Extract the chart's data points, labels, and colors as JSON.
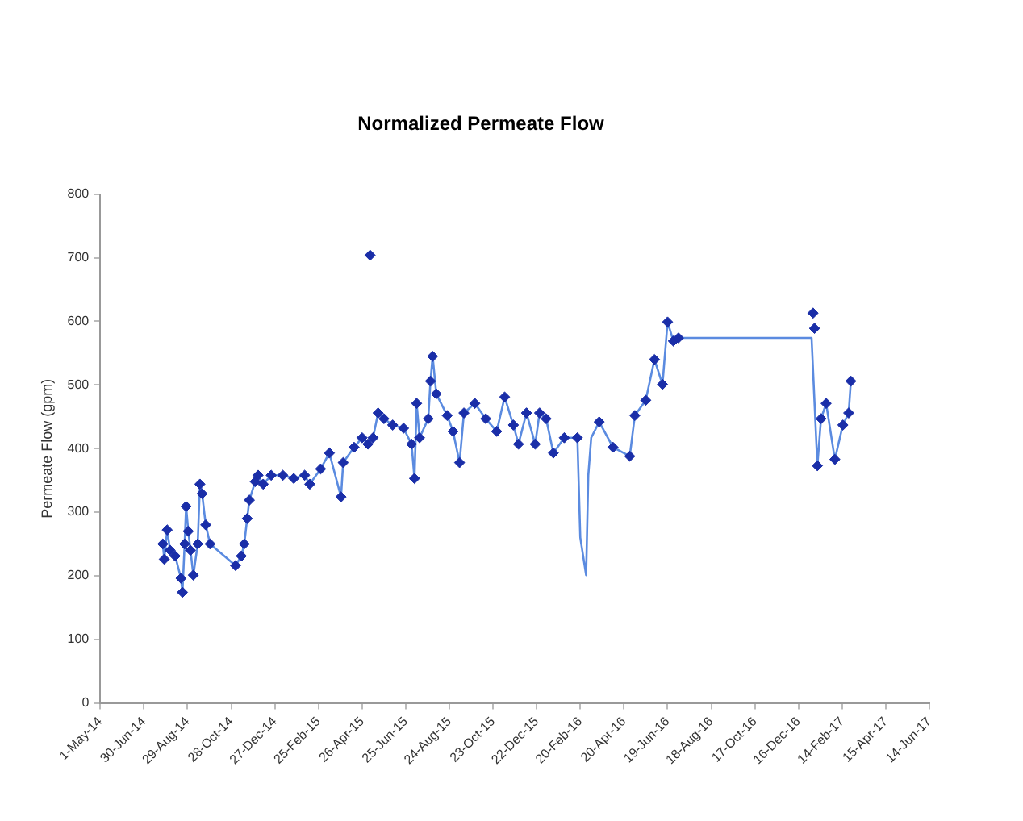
{
  "chart_data": {
    "type": "line",
    "title": "Normalized Permeate Flow",
    "ylabel": "Permeate Flow (gpm)",
    "xlim": [
      "2014-05-01",
      "2017-06-14"
    ],
    "xticks": [
      {
        "value": "2014-05-01",
        "label": "1-May-14"
      },
      {
        "value": "2014-06-30",
        "label": "30-Jun-14"
      },
      {
        "value": "2014-08-29",
        "label": "29-Aug-14"
      },
      {
        "value": "2014-10-28",
        "label": "28-Oct-14"
      },
      {
        "value": "2014-12-27",
        "label": "27-Dec-14"
      },
      {
        "value": "2015-02-25",
        "label": "25-Feb-15"
      },
      {
        "value": "2015-04-26",
        "label": "26-Apr-15"
      },
      {
        "value": "2015-06-25",
        "label": "25-Jun-15"
      },
      {
        "value": "2015-08-24",
        "label": "24-Aug-15"
      },
      {
        "value": "2015-10-23",
        "label": "23-Oct-15"
      },
      {
        "value": "2015-12-22",
        "label": "22-Dec-15"
      },
      {
        "value": "2016-02-20",
        "label": "20-Feb-16"
      },
      {
        "value": "2016-04-20",
        "label": "20-Apr-16"
      },
      {
        "value": "2016-06-19",
        "label": "19-Jun-16"
      },
      {
        "value": "2016-08-18",
        "label": "18-Aug-16"
      },
      {
        "value": "2016-10-17",
        "label": "17-Oct-16"
      },
      {
        "value": "2016-12-16",
        "label": "16-Dec-16"
      },
      {
        "value": "2017-02-14",
        "label": "14-Feb-17"
      },
      {
        "value": "2017-04-15",
        "label": "15-Apr-17"
      },
      {
        "value": "2017-06-14",
        "label": "14-Jun-17"
      }
    ],
    "ylim": [
      0,
      800
    ],
    "yticks": [
      0,
      100,
      200,
      300,
      400,
      500,
      600,
      700,
      800
    ],
    "grid": false,
    "legend": false,
    "series": [
      {
        "type": "line",
        "color": "#5b8be0",
        "marker": "none",
        "line_style": "solid",
        "x": [
          "2014-07-26",
          "2014-07-28",
          "2014-08-01",
          "2014-08-05",
          "2014-08-12",
          "2014-08-20",
          "2014-08-22",
          "2014-08-25",
          "2014-08-27",
          "2014-08-30",
          "2014-09-02",
          "2014-09-06",
          "2014-09-12",
          "2014-09-15",
          "2014-09-18",
          "2014-09-23",
          "2014-09-29",
          "2014-11-03",
          "2014-11-11",
          "2014-11-15",
          "2014-11-19",
          "2014-11-22",
          "2014-11-30",
          "2014-12-04",
          "2014-12-11",
          "2014-12-22",
          "2015-01-07",
          "2015-01-22",
          "2015-02-06",
          "2015-02-13",
          "2015-02-28",
          "2015-03-12",
          "2015-03-28",
          "2015-03-31",
          "2015-04-15",
          "2015-04-26",
          "2015-05-04",
          "2015-05-11",
          "2015-05-18",
          "2015-05-26",
          "2015-06-07",
          "2015-06-22",
          "2015-07-03",
          "2015-07-07",
          "2015-07-10",
          "2015-07-14",
          "2015-07-26",
          "2015-07-29",
          "2015-08-01",
          "2015-08-06",
          "2015-08-21",
          "2015-08-29",
          "2015-09-07",
          "2015-09-13",
          "2015-09-28",
          "2015-10-13",
          "2015-10-28",
          "2015-11-08",
          "2015-11-20",
          "2015-11-27",
          "2015-12-08",
          "2015-12-20",
          "2015-12-26",
          "2016-01-04",
          "2016-01-14",
          "2016-01-29",
          "2016-02-16",
          "2016-02-20",
          "2016-02-28",
          "2016-03-02",
          "2016-03-06",
          "2016-03-17",
          "2016-04-05",
          "2016-04-28",
          "2016-05-05",
          "2016-05-20",
          "2016-06-01",
          "2016-06-12",
          "2016-06-19",
          "2016-06-27",
          "2016-07-04",
          "2017-01-03",
          "2017-01-11",
          "2017-01-16",
          "2017-01-23",
          "2017-02-04",
          "2017-02-15",
          "2017-02-23",
          "2017-02-26"
        ],
        "values": [
          250,
          226,
          272,
          240,
          231,
          196,
          174,
          250,
          309,
          270,
          240,
          201,
          250,
          344,
          329,
          280,
          250,
          216,
          231,
          250,
          290,
          319,
          348,
          358,
          344,
          358,
          358,
          353,
          358,
          344,
          368,
          393,
          324,
          378,
          402,
          417,
          407,
          417,
          456,
          447,
          437,
          432,
          407,
          353,
          471,
          417,
          447,
          506,
          545,
          486,
          452,
          427,
          378,
          456,
          471,
          447,
          427,
          481,
          437,
          407,
          456,
          407,
          456,
          447,
          393,
          417,
          417,
          260,
          201,
          358,
          417,
          442,
          402,
          388,
          452,
          476,
          540,
          501,
          599,
          569,
          574,
          574,
          373,
          447,
          471,
          383,
          437,
          456,
          506
        ]
      },
      {
        "type": "scatter",
        "color": "#1a2ea8",
        "marker": "diamond",
        "x": [
          "2014-07-26",
          "2014-07-28",
          "2014-08-01",
          "2014-08-05",
          "2014-08-12",
          "2014-08-20",
          "2014-08-22",
          "2014-08-25",
          "2014-08-27",
          "2014-08-30",
          "2014-09-02",
          "2014-09-06",
          "2014-09-12",
          "2014-09-15",
          "2014-09-18",
          "2014-09-23",
          "2014-09-29",
          "2014-11-03",
          "2014-11-11",
          "2014-11-15",
          "2014-11-19",
          "2014-11-22",
          "2014-11-30",
          "2014-12-04",
          "2014-12-11",
          "2014-12-22",
          "2015-01-07",
          "2015-01-22",
          "2015-02-06",
          "2015-02-13",
          "2015-02-28",
          "2015-03-12",
          "2015-03-28",
          "2015-03-31",
          "2015-04-15",
          "2015-04-26",
          "2015-05-04",
          "2015-05-07",
          "2015-05-11",
          "2015-05-18",
          "2015-05-26",
          "2015-06-07",
          "2015-06-22",
          "2015-07-03",
          "2015-07-07",
          "2015-07-10",
          "2015-07-14",
          "2015-07-26",
          "2015-07-29",
          "2015-08-01",
          "2015-08-06",
          "2015-08-21",
          "2015-08-29",
          "2015-09-07",
          "2015-09-13",
          "2015-09-28",
          "2015-10-13",
          "2015-10-28",
          "2015-11-08",
          "2015-11-20",
          "2015-11-27",
          "2015-12-08",
          "2015-12-20",
          "2015-12-26",
          "2016-01-04",
          "2016-01-14",
          "2016-01-29",
          "2016-02-16",
          "2016-03-17",
          "2016-04-05",
          "2016-04-28",
          "2016-05-05",
          "2016-05-20",
          "2016-06-01",
          "2016-06-12",
          "2016-06-19",
          "2016-06-27",
          "2016-07-04",
          "2017-01-05",
          "2017-01-07",
          "2017-01-11",
          "2017-01-16",
          "2017-01-23",
          "2017-02-04",
          "2017-02-15",
          "2017-02-23",
          "2017-02-26"
        ],
        "values": [
          250,
          226,
          272,
          240,
          231,
          196,
          174,
          250,
          309,
          270,
          240,
          201,
          250,
          344,
          329,
          280,
          250,
          216,
          231,
          250,
          290,
          319,
          348,
          358,
          344,
          358,
          358,
          353,
          358,
          344,
          368,
          393,
          324,
          378,
          402,
          417,
          407,
          704,
          417,
          456,
          447,
          437,
          432,
          407,
          353,
          471,
          417,
          447,
          506,
          545,
          486,
          452,
          427,
          378,
          456,
          471,
          447,
          427,
          481,
          437,
          407,
          456,
          407,
          456,
          447,
          393,
          417,
          417,
          442,
          402,
          388,
          452,
          476,
          540,
          501,
          599,
          569,
          574,
          613,
          589,
          373,
          447,
          471,
          383,
          437,
          456,
          506
        ]
      }
    ]
  }
}
